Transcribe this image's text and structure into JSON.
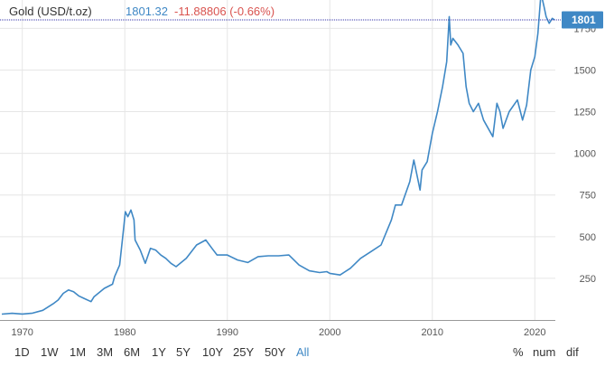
{
  "header": {
    "instrument": "Gold (USD/t.oz)",
    "price": "1801.32",
    "change": "-11.88806 (-0.66%)",
    "price_color": "#3f88c5",
    "change_color": "#d9534f"
  },
  "last_price_label": "1801",
  "ranges": [
    "1D",
    "1W",
    "1M",
    "3M",
    "6M",
    "1Y",
    "5Y",
    "10Y",
    "25Y",
    "50Y",
    "All"
  ],
  "active_range": "All",
  "options": [
    "%",
    "num",
    "dif"
  ],
  "colors": {
    "line": "#3f88c5",
    "badge": "#3f88c5",
    "grid": "#e6e6e6",
    "price_line": "#3333aa"
  },
  "chart_data": {
    "type": "line",
    "x_axis": {
      "ticks": [
        1970,
        1980,
        1990,
        2000,
        2010,
        2020
      ],
      "range": [
        1968,
        2022
      ]
    },
    "y_axis": {
      "ticks": [
        250,
        500,
        750,
        1000,
        1250,
        1500,
        1750
      ],
      "range": [
        0,
        1920
      ],
      "side": "right"
    },
    "grid": true,
    "last_value": 1801,
    "series": [
      {
        "x": [
          1968,
          1969,
          1970,
          1971,
          1972,
          1973,
          1973.5,
          1974,
          1974.5,
          1975,
          1975.5,
          1976,
          1976.7,
          1977,
          1978,
          1978.8,
          1979,
          1979.5,
          1979.9,
          1980.05,
          1980.3,
          1980.6,
          1980.9,
          1981,
          1981.5,
          1982,
          1982.5,
          1983,
          1983.5,
          1984,
          1984.5,
          1985,
          1986,
          1987,
          1987.9,
          1988.5,
          1989,
          1990,
          1991,
          1992,
          1993,
          1994,
          1995,
          1996,
          1997,
          1998,
          1999,
          1999.7,
          2000,
          2001,
          2002,
          2003,
          2004,
          2005,
          2006,
          2006.4,
          2007,
          2007.8,
          2008.2,
          2008.8,
          2009,
          2009.5,
          2010,
          2010.5,
          2011,
          2011.4,
          2011.65,
          2011.8,
          2012,
          2012.5,
          2013,
          2013.3,
          2013.6,
          2014,
          2014.5,
          2015,
          2015.9,
          2016.3,
          2016.6,
          2016.9,
          2017.5,
          2018.3,
          2018.8,
          2019.2,
          2019.6,
          2020,
          2020.3,
          2020.6,
          2020.9,
          2021.1,
          2021.4,
          2021.7,
          2021.9
        ],
        "y": [
          35,
          40,
          36,
          41,
          58,
          97,
          120,
          160,
          180,
          170,
          145,
          130,
          110,
          140,
          190,
          215,
          260,
          330,
          560,
          650,
          620,
          660,
          600,
          480,
          420,
          340,
          430,
          420,
          390,
          370,
          340,
          320,
          370,
          450,
          480,
          430,
          390,
          390,
          360,
          345,
          380,
          385,
          385,
          390,
          330,
          295,
          285,
          290,
          280,
          270,
          310,
          370,
          410,
          450,
          600,
          690,
          690,
          830,
          960,
          780,
          900,
          950,
          1120,
          1250,
          1400,
          1550,
          1820,
          1650,
          1690,
          1650,
          1600,
          1400,
          1300,
          1250,
          1300,
          1200,
          1100,
          1300,
          1250,
          1150,
          1250,
          1320,
          1200,
          1290,
          1500,
          1580,
          1720,
          1960,
          1880,
          1820,
          1780,
          1810,
          1801
        ]
      }
    ]
  }
}
